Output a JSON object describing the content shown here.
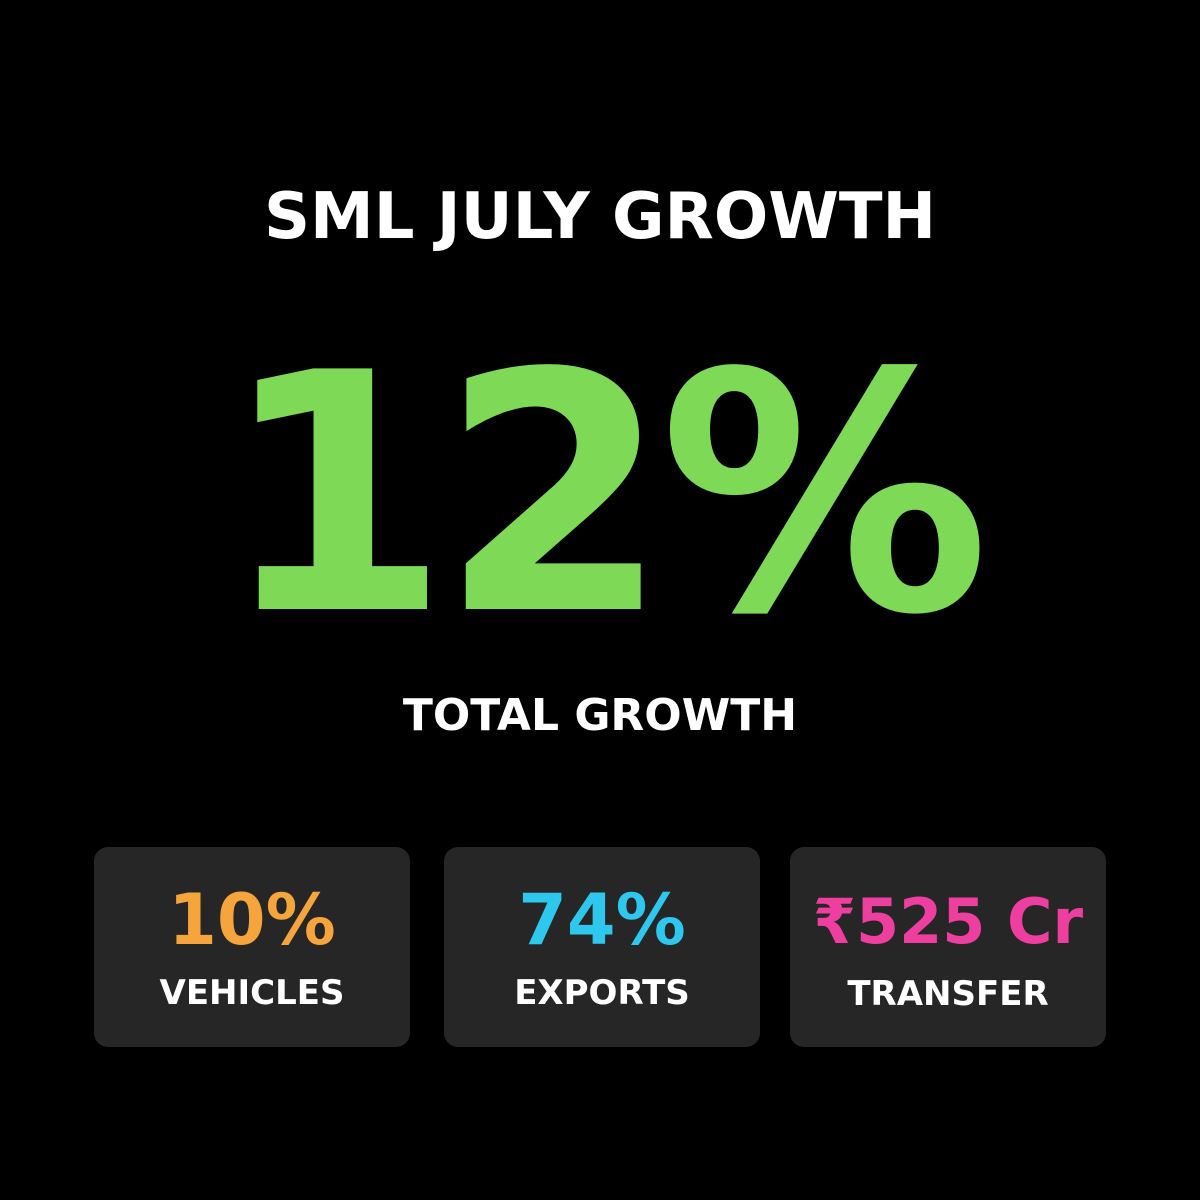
{
  "header": {
    "title": "SML JULY GROWTH"
  },
  "hero": {
    "value": "12%",
    "label": "TOTAL GROWTH"
  },
  "cards": [
    {
      "value": "10%",
      "label": "VEHICLES"
    },
    {
      "value": "74%",
      "label": "EXPORTS"
    },
    {
      "value": "₹525 Cr",
      "label": "TRANSFER"
    }
  ]
}
